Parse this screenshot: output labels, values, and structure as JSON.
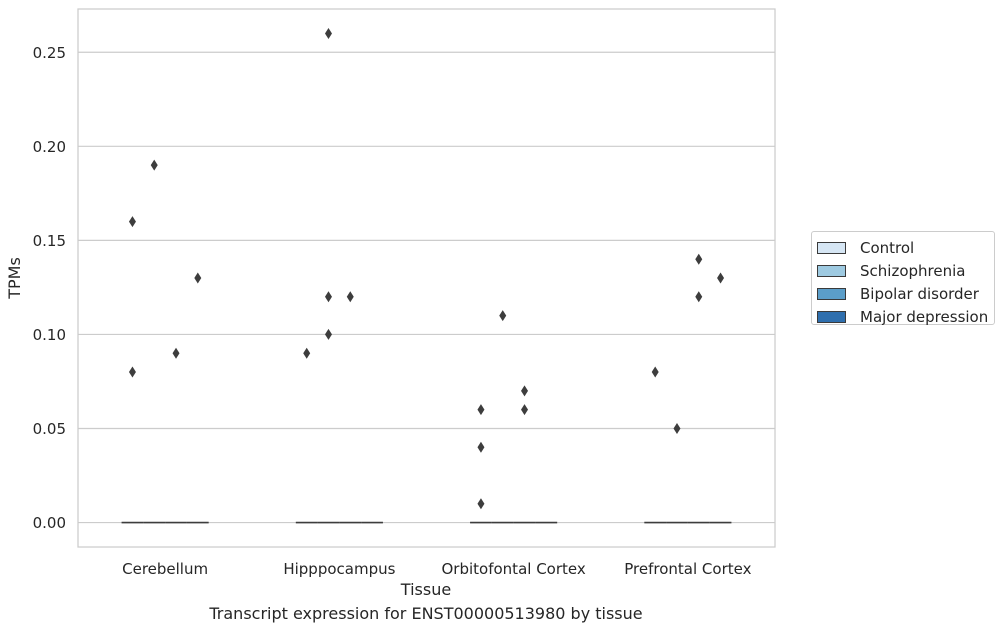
{
  "chart_data": {
    "type": "box",
    "title": "Transcript expression for ENST00000513980 by tissue",
    "xlabel": "Tissue",
    "ylabel": "TPMs",
    "categories": [
      "Cerebellum",
      "Hipppocampus",
      "Orbitofontal Cortex",
      "Prefrontal Cortex"
    ],
    "ylim": [
      -0.013,
      0.273
    ],
    "yticks": [
      0.0,
      0.05,
      0.1,
      0.15,
      0.2,
      0.25
    ],
    "ytick_labels": [
      "0.00",
      "0.05",
      "0.10",
      "0.15",
      "0.20",
      "0.25"
    ],
    "grid": "horizontal",
    "legend_position": "right",
    "series": [
      {
        "name": "Control",
        "color": "#d6e6f4",
        "median": [
          0,
          0,
          0,
          0
        ],
        "outliers": [
          [
            0.08,
            0.16
          ],
          [
            0.09
          ],
          [
            0.01,
            0.04,
            0.06
          ],
          [
            0.08
          ]
        ]
      },
      {
        "name": "Schizophrenia",
        "color": "#9ecae1",
        "median": [
          0,
          0,
          0,
          0
        ],
        "outliers": [
          [
            0.19
          ],
          [
            0.1,
            0.12,
            0.26
          ],
          [
            0.11
          ],
          [
            0.05
          ]
        ]
      },
      {
        "name": "Bipolar disorder",
        "color": "#5b9ec9",
        "median": [
          0,
          0,
          0,
          0
        ],
        "outliers": [
          [
            0.09
          ],
          [
            0.12
          ],
          [
            0.06,
            0.07
          ],
          [
            0.12,
            0.14
          ]
        ]
      },
      {
        "name": "Major depression",
        "color": "#2f6fae",
        "median": [
          0,
          0,
          0,
          0
        ],
        "outliers": [
          [
            0.13
          ],
          [],
          [],
          [
            0.13
          ]
        ]
      }
    ]
  }
}
